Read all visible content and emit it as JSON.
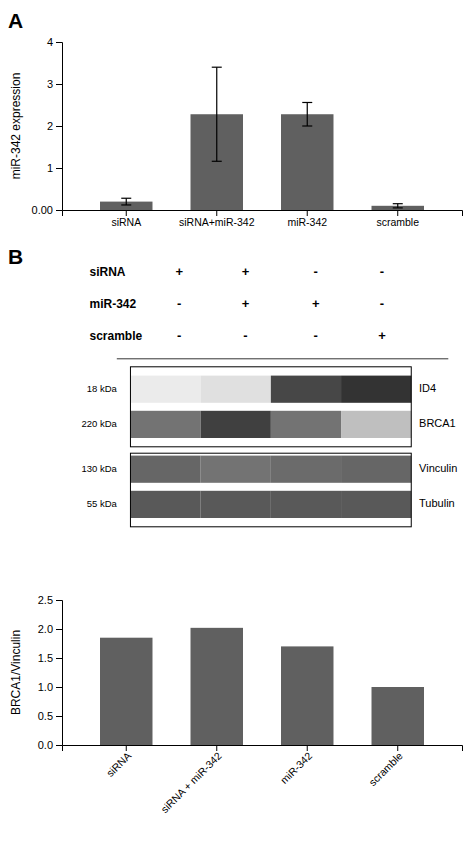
{
  "chart_data": [
    {
      "type": "bar",
      "title": "A",
      "categories": [
        "siRNA",
        "siRNA+miR-342",
        "miR-342",
        "scramble"
      ],
      "values": [
        0.2,
        2.28,
        2.28,
        0.1
      ],
      "errors": [
        0.08,
        1.12,
        0.28,
        0.05
      ],
      "ylabel": "miR-342 expression",
      "ylim": [
        0,
        4
      ],
      "yticks": [
        {
          "value": 0,
          "label": "0.00"
        },
        1,
        2,
        3,
        4
      ],
      "color": "#606060"
    },
    {
      "type": "blot",
      "title": "B",
      "rows": [
        "siRNA",
        "miR-342",
        "scramble"
      ],
      "signs": [
        [
          "+",
          "+",
          "-",
          "-"
        ],
        [
          "-",
          "+",
          "+",
          "-"
        ],
        [
          "-",
          "-",
          "-",
          "+"
        ]
      ],
      "proteins": [
        "ID4",
        "BRCA1",
        "Vinculin",
        "Tubulin"
      ],
      "kda_labels": [
        "18 kDa",
        "220 kDa",
        "130 kDa",
        "55 kDa"
      ],
      "cells": [
        [
          0.08,
          0.12,
          0.72,
          0.8
        ],
        [
          0.55,
          0.75,
          0.55,
          0.25
        ],
        [
          0.6,
          0.55,
          0.58,
          0.6
        ],
        [
          0.65,
          0.65,
          0.65,
          0.65
        ]
      ]
    },
    {
      "type": "bar",
      "categories": [
        "siRNA",
        "siRNA + miR-342",
        "miR-342",
        "scramble"
      ],
      "values": [
        1.85,
        2.02,
        1.7,
        1.0
      ],
      "ylabel": "BRCA1/Vinculin",
      "ylim": [
        0,
        2.5
      ],
      "yticks": [
        {
          "value": 0.0,
          "label": "0.0"
        },
        0.5,
        {
          "value": 1.0,
          "label": "1.0"
        },
        1.5,
        {
          "value": 2.0,
          "label": "2.0"
        },
        2.5
      ],
      "color": "#606060"
    }
  ]
}
